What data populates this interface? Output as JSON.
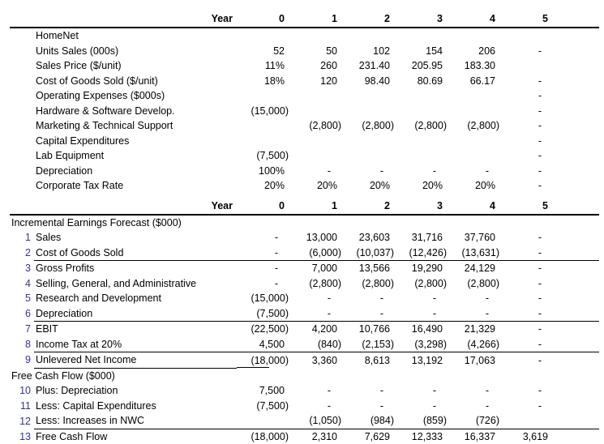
{
  "colors": {
    "row_number_blue": "#333399",
    "text": "#000000",
    "rule_lines": "#000000",
    "background": "#ffffff"
  },
  "table": {
    "year_header_label": "Year",
    "year_columns": [
      "0",
      "1",
      "2",
      "3",
      "4",
      "5"
    ],
    "assumptions": {
      "rows": [
        {
          "label": "HomeNet",
          "values": [
            "",
            "",
            "",
            "",
            "",
            ""
          ]
        },
        {
          "label": "Units Sales (000s)",
          "values": [
            "52",
            "50",
            "102",
            "154",
            "206",
            "-"
          ]
        },
        {
          "label": "Sales Price ($/unit)",
          "values": [
            "11%",
            "260",
            "231.40",
            "205.95",
            "183.30",
            ""
          ]
        },
        {
          "label": "Cost of Goods Sold ($/unit)",
          "values": [
            "18%",
            "120",
            "98.40",
            "80.69",
            "66.17",
            "-"
          ]
        },
        {
          "label": "Operating Expenses ($000s)",
          "values": [
            "",
            "",
            "",
            "",
            "",
            "-"
          ]
        },
        {
          "label": "Hardware & Software Develop.",
          "values": [
            "(15,000)",
            "",
            "",
            "",
            "",
            "-"
          ]
        },
        {
          "label": "Marketing & Technical Support",
          "values": [
            "",
            "(2,800)",
            "(2,800)",
            "(2,800)",
            "(2,800)",
            "-"
          ]
        },
        {
          "label": "Capital Expenditures",
          "values": [
            "",
            "",
            "",
            "",
            "",
            "-"
          ]
        },
        {
          "label": "Lab Equipment",
          "values": [
            "(7,500)",
            "",
            "",
            "",
            "",
            "-"
          ]
        },
        {
          "label": "Depreciation",
          "values": [
            "100%",
            "-",
            "-",
            "-",
            "-",
            "-"
          ]
        },
        {
          "label": "Corporate Tax Rate",
          "values": [
            "20%",
            "20%",
            "20%",
            "20%",
            "20%",
            "-"
          ]
        }
      ]
    },
    "earnings": {
      "section_title": "Incremental Earnings Forecast ($000)",
      "rows": [
        {
          "num": "1",
          "label": "Sales",
          "values": [
            "-",
            "13,000",
            "23,603",
            "31,716",
            "37,760",
            "-"
          ]
        },
        {
          "num": "2",
          "label": "Cost of Goods Sold",
          "values": [
            "-",
            "(6,000)",
            "(10,037)",
            "(12,426)",
            "(13,631)",
            "-"
          ],
          "rule_below": true
        },
        {
          "num": "3",
          "label": "Gross Profits",
          "values": [
            "-",
            "7,000",
            "13,566",
            "19,290",
            "24,129",
            "-"
          ]
        },
        {
          "num": "4",
          "label": "Selling, General, and Administrative",
          "values": [
            "-",
            "(2,800)",
            "(2,800)",
            "(2,800)",
            "(2,800)",
            "-"
          ]
        },
        {
          "num": "5",
          "label": "Research and Development",
          "values": [
            "(15,000)",
            "-",
            "-",
            "-",
            "-",
            "-"
          ]
        },
        {
          "num": "6",
          "label": "Depreciation",
          "values": [
            "(7,500)",
            "-",
            "-",
            "-",
            "-",
            "-"
          ],
          "rule_below": true
        },
        {
          "num": "7",
          "label": "EBIT",
          "values": [
            "(22,500)",
            "4,200",
            "10,766",
            "16,490",
            "21,329",
            "-"
          ]
        },
        {
          "num": "8",
          "label": "Income Tax at 20%",
          "values": [
            "4,500",
            "(840)",
            "(2,153)",
            "(3,298)",
            "(4,266)",
            "-"
          ],
          "rule_below": true
        },
        {
          "num": "9",
          "label": "Unlevered Net Income",
          "values": [
            "(18,000)",
            "3,360",
            "8,613",
            "13,192",
            "17,063",
            "-"
          ],
          "rule_below": "partial"
        }
      ]
    },
    "fcf": {
      "section_title": "Free Cash Flow ($000)",
      "rows": [
        {
          "num": "10",
          "label": "Plus: Depreciation",
          "values": [
            "7,500",
            "-",
            "-",
            "-",
            "-",
            "-"
          ]
        },
        {
          "num": "11",
          "label": "Less: Capital Expenditures",
          "values": [
            "(7,500)",
            "-",
            "-",
            "-",
            "-",
            "-"
          ]
        },
        {
          "num": "12",
          "label": "Less: Increases in NWC",
          "values": [
            "",
            "(1,050)",
            "(984)",
            "(859)",
            "(726)",
            ""
          ],
          "rule_below": true
        },
        {
          "num": "13",
          "label": "Free Cash Flow",
          "values": [
            "(18,000)",
            "2,310",
            "7,629",
            "12,333",
            "16,337",
            "3,619"
          ]
        }
      ]
    }
  }
}
